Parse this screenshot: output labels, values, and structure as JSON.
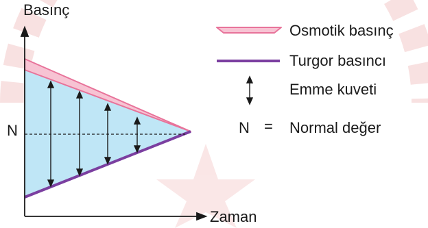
{
  "axes": {
    "y_label": "Basınç",
    "x_label": "Zaman",
    "n_tick_label": "N"
  },
  "legend": {
    "osmotic": "Osmotik basınç",
    "turgor": "Turgor basıncı",
    "emme": "Emme kuveti",
    "normal_symbol": "N",
    "equals_symbol": "=",
    "normal": "Normal değer"
  },
  "colors": {
    "osmotic_fill": "#f7c3d3",
    "osmotic_stroke": "#e8739a",
    "turgor": "#7b3fa0",
    "region_fill": "#bfe6f6",
    "axis": "#1a1a1a",
    "watermark": "#f3c9c9"
  }
}
